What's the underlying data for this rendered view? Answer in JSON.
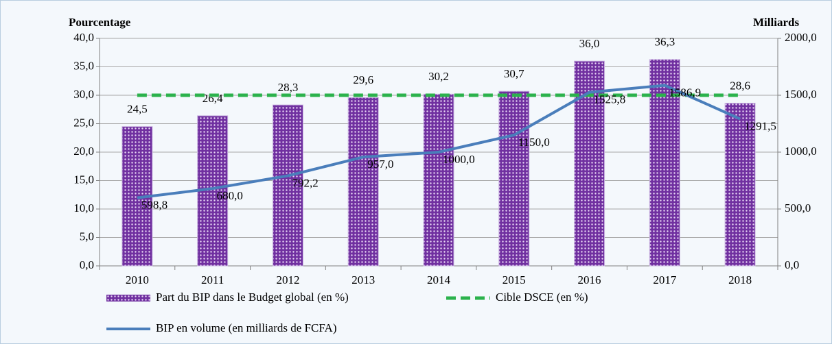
{
  "chart_data": {
    "type": "bar",
    "categories": [
      "2010",
      "2011",
      "2012",
      "2013",
      "2014",
      "2015",
      "2016",
      "2017",
      "2018"
    ],
    "y_label": "Pourcentage",
    "y2_label": "Milliards",
    "series": [
      {
        "name": "Part du BIP dans le Budget global (en %)",
        "type": "bar",
        "color": "#7030a0",
        "values": [
          24.5,
          26.4,
          28.3,
          29.6,
          30.2,
          30.7,
          36.0,
          36.3,
          28.6
        ],
        "value_labels": [
          "24,5",
          "26,4",
          "28,3",
          "29,6",
          "30,2",
          "30,7",
          "36,0",
          "36,3",
          "28,6"
        ]
      },
      {
        "name": "Cible DSCE (en %)",
        "type": "line",
        "dashed": true,
        "color": "#2bb24c",
        "values": [
          30,
          30,
          30,
          30,
          30,
          30,
          30,
          30,
          30
        ]
      },
      {
        "name": "BIP en volume (en milliards de FCFA)",
        "type": "line",
        "axis": "y2",
        "color": "#4a7ebb",
        "values": [
          598.8,
          680.0,
          792.2,
          957.0,
          1000.0,
          1150.0,
          1525.8,
          1586.9,
          1291.5
        ],
        "value_labels": [
          "598,8",
          "680,0",
          "792,2",
          "957,0",
          "1000,0",
          "1150,0",
          "1525,8",
          "1586,9",
          "1291,5"
        ]
      }
    ],
    "ylim": [
      0,
      40
    ],
    "yticks": [
      {
        "value": 0,
        "label": "0,0"
      },
      {
        "value": 5,
        "label": "5,0"
      },
      {
        "value": 10,
        "label": "10,0"
      },
      {
        "value": 15,
        "label": "15,0"
      },
      {
        "value": 20,
        "label": "20,0"
      },
      {
        "value": 25,
        "label": "25,0"
      },
      {
        "value": 30,
        "label": "30,0"
      },
      {
        "value": 35,
        "label": "35,0"
      },
      {
        "value": 40,
        "label": "40,0"
      }
    ],
    "y2lim": [
      0,
      2000
    ],
    "y2ticks": [
      {
        "value": 0,
        "label": "0,0"
      },
      {
        "value": 500,
        "label": "500,0"
      },
      {
        "value": 1000,
        "label": "1000,0"
      },
      {
        "value": 1500,
        "label": "1500,0"
      },
      {
        "value": 2000,
        "label": "2000,0"
      }
    ],
    "grid": true
  }
}
